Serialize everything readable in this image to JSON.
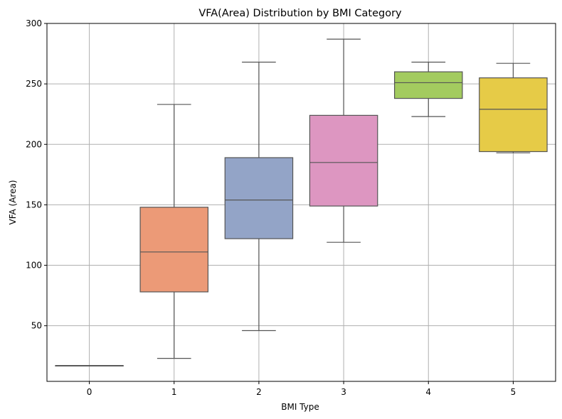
{
  "chart_data": {
    "type": "box",
    "title": "VFA(Area) Distribution by BMI Category",
    "xlabel": "BMI Type",
    "ylabel": "VFA (Area)",
    "categories": [
      "0",
      "1",
      "2",
      "3",
      "4",
      "5"
    ],
    "ylim": [
      4,
      300
    ],
    "yticks": [
      50,
      100,
      150,
      200,
      250,
      300
    ],
    "grid": true,
    "boxes": [
      {
        "category": "0",
        "min": 17,
        "q1": 17,
        "median": 17,
        "q3": 17,
        "max": 17,
        "color": "#66c2a5"
      },
      {
        "category": "1",
        "min": 23,
        "q1": 78,
        "median": 111,
        "q3": 148,
        "max": 233,
        "color": "#ec9a77"
      },
      {
        "category": "2",
        "min": 46,
        "q1": 122,
        "median": 154,
        "q3": 189,
        "max": 268,
        "color": "#93a4c7"
      },
      {
        "category": "3",
        "min": 119,
        "q1": 149,
        "median": 185,
        "q3": 224,
        "max": 287,
        "color": "#dd96c1"
      },
      {
        "category": "4",
        "min": 223,
        "q1": 238,
        "median": 251,
        "q3": 260,
        "max": 268,
        "color": "#a3cb5f"
      },
      {
        "category": "5",
        "min": 193,
        "q1": 194,
        "median": 229,
        "q3": 255,
        "max": 267,
        "color": "#e6cb47"
      }
    ]
  }
}
